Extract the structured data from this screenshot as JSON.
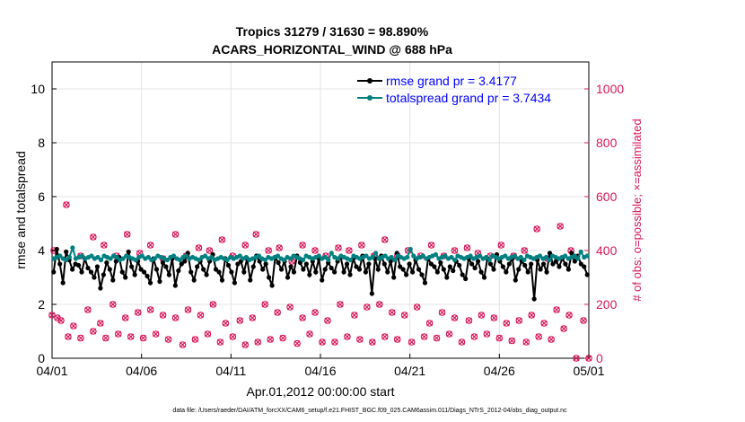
{
  "chart_data": {
    "type": "line",
    "title": "Tropics 31279 / 31630 = 98.890%",
    "subtitle": "ACARS_HORIZONTAL_WIND @ 688 hPa",
    "xlabel": "Apr.01,2012 00:00:00 start",
    "ylabel": "rmse and totalspread",
    "y2label": "# of obs: o=possible; ×=assimilated",
    "footnote": "data file: /Users/raeder/DAI/ATM_forcXX/CAM6_setup/f.e21.FHIST_BGC.f09_025.CAM6assim.011/Diags_NTrS_2012-04/obs_diag_output.nc",
    "x_ticks": [
      "04/01",
      "04/06",
      "04/11",
      "04/16",
      "04/21",
      "04/26",
      "05/01"
    ],
    "x_range_days": [
      0,
      30
    ],
    "ylim": [
      0,
      11
    ],
    "y_ticks": [
      0,
      2,
      4,
      6,
      8,
      10
    ],
    "y2lim": [
      0,
      1100
    ],
    "y2_ticks": [
      0,
      200,
      400,
      600,
      800,
      1000
    ],
    "grid": true,
    "legend_position": "top-right",
    "colors": {
      "rmse": "#000000",
      "spread": "#008080",
      "obs": "#d6175a",
      "legend_text": "#0000ff"
    },
    "series": [
      {
        "name": "rmse grand pr = 3.4177",
        "axis": "left",
        "values": [
          3.2,
          4.05,
          3.5,
          2.8,
          3.95,
          3.65,
          3.3,
          3.5,
          3.45,
          3.2,
          3.7,
          3.35,
          3.2,
          3.0,
          3.4,
          2.6,
          3.1,
          3.55,
          3.3,
          2.9,
          3.6,
          3.75,
          3.2,
          3.0,
          3.95,
          3.4,
          3.1,
          3.6,
          3.3,
          3.2,
          3.05,
          2.8,
          3.7,
          3.3,
          2.85,
          3.55,
          3.4,
          3.1,
          3.7,
          2.7,
          3.25,
          3.5,
          3.6,
          3.9,
          3.2,
          2.9,
          3.4,
          3.6,
          3.3,
          3.1,
          3.6,
          3.85,
          3.3,
          3.2,
          2.9,
          3.7,
          3.45,
          3.2,
          2.8,
          3.5,
          3.6,
          3.2,
          3.7,
          2.9,
          3.4,
          3.8,
          3.6,
          3.3,
          3.5,
          3.0,
          2.7,
          3.75,
          3.55,
          3.3,
          3.6,
          3.0,
          3.4,
          3.2,
          3.8,
          3.55,
          3.3,
          3.5,
          3.1,
          3.6,
          3.2,
          3.7,
          2.9,
          3.3,
          3.55,
          3.35,
          3.2,
          3.6,
          3.75,
          3.2,
          3.5,
          3.1,
          3.7,
          3.4,
          3.3,
          3.8,
          3.2,
          3.5,
          2.4,
          3.7,
          3.3,
          3.8,
          3.5,
          3.2,
          3.6,
          3.0,
          3.9,
          3.4,
          3.3,
          3.1,
          3.5,
          3.2,
          3.65,
          3.3,
          3.1,
          2.8,
          3.7,
          3.5,
          3.4,
          3.2,
          3.55,
          3.3,
          3.0,
          3.4,
          3.25,
          3.6,
          3.45,
          3.1,
          2.95,
          3.7,
          3.5,
          3.35,
          3.6,
          3.2,
          3.0,
          3.7,
          3.5,
          3.3,
          3.85,
          3.6,
          3.4,
          3.2,
          3.5,
          3.7,
          2.9,
          3.3,
          3.6,
          3.45,
          3.2,
          3.5,
          2.2,
          3.65,
          3.3,
          3.5,
          3.2,
          3.9,
          3.5,
          3.6,
          3.4,
          3.7,
          3.5,
          3.3,
          3.9,
          3.6,
          3.8,
          3.5,
          3.4,
          3.1
        ]
      },
      {
        "name": "totalspread grand pr = 3.7434",
        "axis": "left",
        "values": [
          3.7,
          3.75,
          3.8,
          3.7,
          3.65,
          3.75,
          4.1,
          3.7,
          3.75,
          3.8,
          3.7,
          3.75,
          3.8,
          3.7,
          3.75,
          3.65,
          3.8,
          3.75,
          3.7,
          3.8,
          3.75,
          3.65,
          3.7,
          3.8,
          3.75,
          3.7,
          3.65,
          3.75,
          3.8,
          3.7,
          3.75,
          3.65,
          3.7,
          3.8,
          3.75,
          3.7,
          3.65,
          3.75,
          3.8,
          3.7,
          3.65,
          3.75,
          3.8,
          3.7,
          3.75,
          3.7,
          3.65,
          3.75,
          3.8,
          3.7,
          3.75,
          3.65,
          3.7,
          3.75,
          3.7,
          3.65,
          3.75,
          3.7,
          3.75,
          3.8,
          3.7,
          3.75,
          3.65,
          3.7,
          3.75,
          3.8,
          3.7,
          3.65,
          3.75,
          3.7,
          3.75,
          3.8,
          3.7,
          3.65,
          3.75,
          3.7,
          3.8,
          3.75,
          3.7,
          3.65,
          3.8,
          3.75,
          3.7,
          3.75,
          3.8,
          3.7,
          3.75,
          3.65,
          3.9,
          3.75,
          3.7,
          3.8,
          3.75,
          3.7,
          3.65,
          3.8,
          3.75,
          3.7,
          3.75,
          3.8,
          3.7,
          3.75,
          3.9,
          3.7,
          3.75,
          3.8,
          3.7,
          3.75,
          3.65,
          3.8,
          3.75,
          3.7,
          3.75,
          4.05,
          3.8,
          3.7,
          3.75,
          3.8,
          3.7,
          3.75,
          3.8,
          3.85,
          3.7,
          3.75,
          3.8,
          3.7,
          3.75,
          3.65,
          3.8,
          3.75,
          3.7,
          3.75,
          3.8,
          3.7,
          3.75,
          3.8,
          3.7,
          3.75,
          3.65,
          3.8,
          3.75,
          3.7,
          3.75,
          3.8,
          3.7,
          3.75,
          3.8,
          3.7,
          3.75,
          3.65,
          3.8,
          3.75,
          3.7,
          3.75,
          3.8,
          3.7,
          3.75,
          3.65,
          3.8,
          3.75,
          3.7,
          3.75,
          3.8,
          3.7,
          3.75,
          3.8,
          3.7,
          3.95,
          3.75,
          3.8
        ]
      },
      {
        "name": "obs_upper",
        "axis": "right",
        "x": [
          0.1,
          0.8,
          1.6,
          2.3,
          2.9,
          3.6,
          4.2,
          4.9,
          5.5,
          6.2,
          6.9,
          7.5,
          8.2,
          8.8,
          9.5,
          10.1,
          10.8,
          11.4,
          12.1,
          12.7,
          13.4,
          14.0,
          14.7,
          15.3,
          16.0,
          16.6,
          17.3,
          18.0,
          18.6,
          19.3,
          19.9,
          20.6,
          21.2,
          21.9,
          22.5,
          23.2,
          23.8,
          24.5,
          25.1,
          25.8,
          26.4,
          27.1,
          27.7,
          28.4,
          29.0
        ],
        "values": [
          400,
          570,
          380,
          450,
          420,
          380,
          460,
          390,
          420,
          370,
          460,
          380,
          410,
          400,
          440,
          380,
          420,
          460,
          400,
          410,
          360,
          420,
          400,
          380,
          410,
          400,
          420,
          380,
          440,
          380,
          400,
          380,
          420,
          380,
          400,
          410,
          390,
          380,
          420,
          380,
          400,
          480,
          370,
          490,
          400
        ]
      },
      {
        "name": "obs_lower",
        "axis": "right",
        "x": [
          0.0,
          0.3,
          0.5,
          0.9,
          1.2,
          1.6,
          2.0,
          2.3,
          2.7,
          3.0,
          3.4,
          3.7,
          4.1,
          4.4,
          4.8,
          5.1,
          5.5,
          5.8,
          6.2,
          6.5,
          6.9,
          7.3,
          7.6,
          8.0,
          8.3,
          8.7,
          9.0,
          9.4,
          9.7,
          10.1,
          10.5,
          10.8,
          11.2,
          11.5,
          11.9,
          12.2,
          12.6,
          12.9,
          13.3,
          13.7,
          14.0,
          14.4,
          14.7,
          15.1,
          15.4,
          15.8,
          16.1,
          16.5,
          16.9,
          17.2,
          17.6,
          17.9,
          18.3,
          18.6,
          19.0,
          19.3,
          19.7,
          20.1,
          20.4,
          20.8,
          21.1,
          21.5,
          21.8,
          22.2,
          22.5,
          22.9,
          23.3,
          23.6,
          24.0,
          24.3,
          24.7,
          25.0,
          25.4,
          25.7,
          26.1,
          26.5,
          26.8,
          27.2,
          27.5,
          27.9,
          28.2,
          28.6,
          28.9,
          29.3,
          29.7,
          30.0
        ],
        "values": [
          160,
          150,
          140,
          80,
          120,
          75,
          180,
          100,
          130,
          75,
          200,
          90,
          150,
          80,
          170,
          75,
          180,
          90,
          160,
          70,
          150,
          50,
          180,
          70,
          160,
          90,
          200,
          60,
          130,
          80,
          140,
          50,
          150,
          60,
          200,
          70,
          170,
          75,
          190,
          55,
          150,
          90,
          170,
          60,
          140,
          60,
          200,
          80,
          160,
          70,
          190,
          60,
          200,
          80,
          170,
          70,
          160,
          60,
          190,
          80,
          130,
          75,
          170,
          90,
          150,
          60,
          140,
          80,
          160,
          90,
          150,
          75,
          130,
          65,
          140,
          60,
          160,
          80,
          130,
          70,
          180,
          110,
          160,
          0,
          140,
          0
        ]
      }
    ]
  }
}
